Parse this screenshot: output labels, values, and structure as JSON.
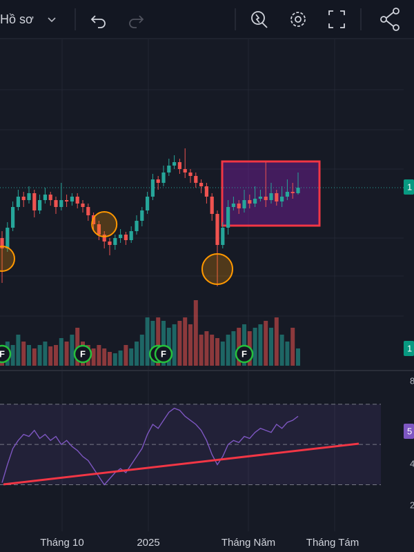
{
  "toolbar": {
    "profile": "Hồ sơ"
  },
  "chart_data": {
    "type": "candlestick",
    "open": [
      95,
      80,
      110,
      140,
      155,
      150,
      160,
      135,
      150,
      158,
      150,
      140,
      150,
      148,
      155,
      145,
      140,
      128,
      115,
      100,
      90,
      85,
      95,
      100,
      92,
      105,
      120,
      135,
      155,
      180,
      175,
      190,
      200,
      205,
      195,
      190,
      185,
      175,
      170,
      155,
      130,
      85,
      110,
      140,
      145,
      138,
      150,
      145,
      152,
      155,
      150,
      160,
      148,
      155,
      162,
      160
    ],
    "high": [
      105,
      118,
      148,
      165,
      162,
      170,
      165,
      158,
      168,
      162,
      155,
      175,
      158,
      160,
      160,
      150,
      145,
      132,
      120,
      105,
      95,
      100,
      108,
      104,
      112,
      128,
      140,
      162,
      188,
      185,
      200,
      210,
      215,
      210,
      225,
      195,
      190,
      180,
      175,
      160,
      135,
      118,
      150,
      155,
      150,
      165,
      158,
      170,
      165,
      205,
      175,
      165,
      170,
      180,
      175,
      190
    ],
    "low": [
      30,
      75,
      105,
      135,
      140,
      145,
      125,
      130,
      145,
      142,
      130,
      135,
      140,
      142,
      138,
      132,
      120,
      108,
      92,
      80,
      70,
      78,
      88,
      85,
      88,
      100,
      112,
      130,
      150,
      165,
      170,
      185,
      195,
      188,
      182,
      175,
      168,
      160,
      145,
      120,
      25,
      80,
      100,
      135,
      130,
      132,
      138,
      140,
      148,
      140,
      145,
      142,
      140,
      150,
      152,
      158
    ],
    "close": [
      80,
      110,
      140,
      155,
      150,
      160,
      135,
      150,
      158,
      150,
      140,
      150,
      148,
      155,
      145,
      140,
      128,
      115,
      100,
      90,
      85,
      95,
      100,
      92,
      105,
      120,
      135,
      155,
      180,
      175,
      190,
      200,
      205,
      195,
      190,
      185,
      175,
      170,
      155,
      130,
      85,
      110,
      140,
      145,
      138,
      150,
      145,
      152,
      155,
      150,
      160,
      148,
      155,
      162,
      160,
      168
    ],
    "up_color": "#26a69a",
    "down_color": "#ef5350",
    "ylim": [
      0,
      380
    ],
    "volume": {
      "values": [
        30,
        35,
        30,
        45,
        35,
        30,
        25,
        30,
        35,
        28,
        30,
        40,
        35,
        45,
        55,
        35,
        30,
        25,
        30,
        25,
        20,
        18,
        22,
        30,
        25,
        35,
        45,
        70,
        65,
        70,
        65,
        55,
        60,
        65,
        70,
        60,
        95,
        45,
        50,
        45,
        40,
        35,
        45,
        50,
        55,
        60,
        50,
        55,
        60,
        65,
        55,
        70,
        45,
        35,
        55,
        25
      ],
      "ylim": [
        0,
        100
      ]
    },
    "rsi": {
      "values": [
        31,
        40,
        48,
        52,
        55,
        54,
        57,
        53,
        55,
        52,
        54,
        50,
        52,
        49,
        47,
        44,
        42,
        38,
        34,
        30,
        33,
        36,
        38,
        36,
        40,
        44,
        48,
        55,
        60,
        58,
        62,
        66,
        68,
        67,
        64,
        62,
        60,
        57,
        52,
        45,
        40,
        44,
        50,
        52,
        51,
        54,
        53,
        56,
        58,
        57,
        56,
        60,
        58,
        61,
        62,
        64
      ],
      "ylim": [
        12,
        84
      ],
      "levels": [
        30,
        50,
        70
      ],
      "color": "#7e57c2"
    },
    "x_labels": [
      "Tháng 10",
      "2025",
      "Tháng Năm",
      "Tháng Tám"
    ],
    "events": [
      {
        "label": "F",
        "at": 0
      },
      {
        "label": "F",
        "at": 15
      },
      {
        "label": "F",
        "at": 29
      },
      {
        "label": "F",
        "at": 30
      },
      {
        "label": "F",
        "at": 45
      }
    ],
    "circled": [
      0,
      19,
      40
    ],
    "price_tags": [
      "1",
      "1",
      "5"
    ],
    "axis_fragments": [
      "8",
      "4",
      "2"
    ]
  }
}
